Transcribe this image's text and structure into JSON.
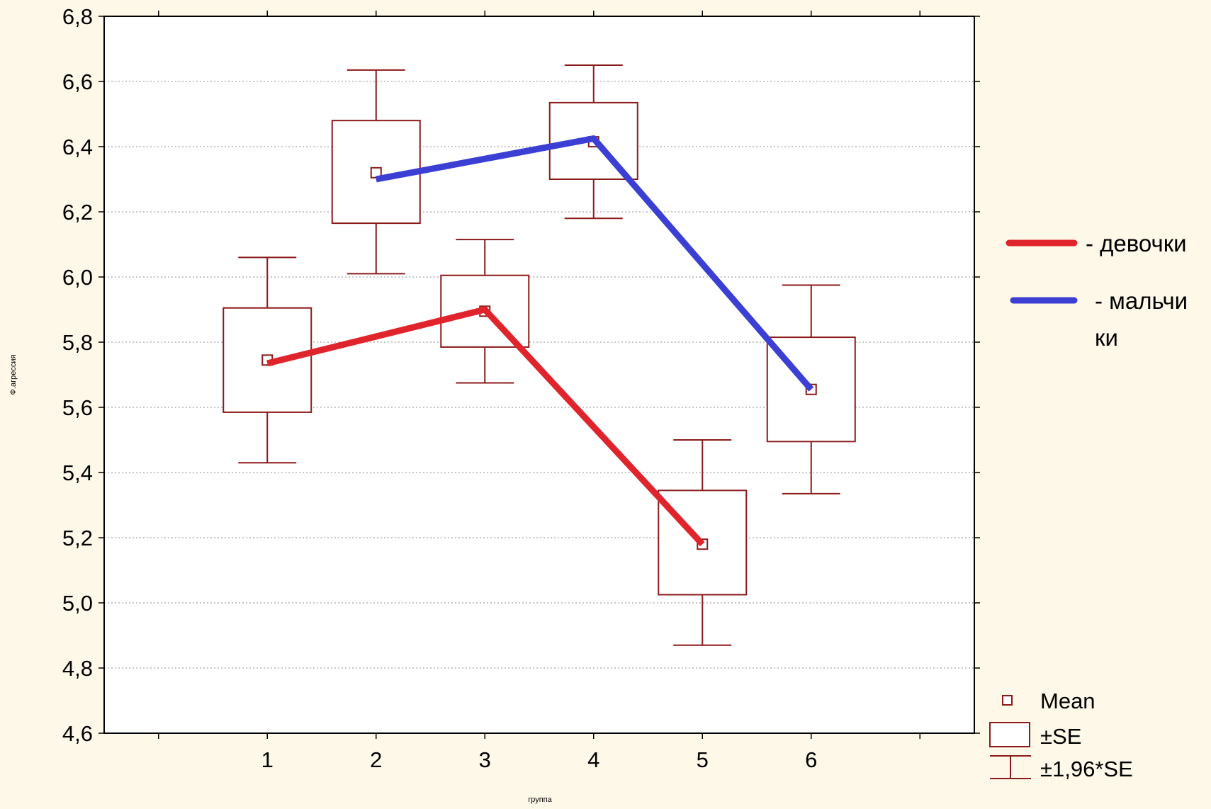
{
  "chart_data": {
    "type": "box",
    "xlabel": "группа",
    "ylabel": "Ф.агрессия",
    "categories": [
      "1",
      "2",
      "3",
      "4",
      "5",
      "6"
    ],
    "x_range": [
      -0.5,
      7.5
    ],
    "ylim": [
      4.6,
      6.8
    ],
    "y_ticks": [
      "4,6",
      "4,8",
      "5,0",
      "5,2",
      "5,4",
      "5,6",
      "5,8",
      "6,0",
      "6,2",
      "6,4",
      "6,6",
      "6,8"
    ],
    "grid": "horizontal dotted",
    "groups": [
      {
        "x": 1,
        "mean": 5.745,
        "se_low": 5.585,
        "se_high": 5.905,
        "ci_low": 5.43,
        "ci_high": 6.06
      },
      {
        "x": 2,
        "mean": 6.32,
        "se_low": 6.165,
        "se_high": 6.48,
        "ci_low": 6.01,
        "ci_high": 6.635
      },
      {
        "x": 3,
        "mean": 5.895,
        "se_low": 5.785,
        "se_high": 6.005,
        "ci_low": 5.675,
        "ci_high": 6.115
      },
      {
        "x": 4,
        "mean": 6.415,
        "se_low": 6.3,
        "se_high": 6.535,
        "ci_low": 6.18,
        "ci_high": 6.65
      },
      {
        "x": 5,
        "mean": 5.18,
        "se_low": 5.025,
        "se_high": 5.345,
        "ci_low": 4.87,
        "ci_high": 5.5
      },
      {
        "x": 6,
        "mean": 5.655,
        "se_low": 5.495,
        "se_high": 5.815,
        "ci_low": 5.335,
        "ci_high": 5.975
      }
    ],
    "series": [
      {
        "name": "- девочки",
        "color": "#e0242c",
        "points": [
          [
            1,
            5.735
          ],
          [
            3,
            5.9
          ],
          [
            5,
            5.18
          ]
        ]
      },
      {
        "name": "- мальчи ки",
        "name_lines": [
          "- мальчи",
          "ки"
        ],
        "color": "#3b3fd4",
        "points": [
          [
            2,
            6.3
          ],
          [
            4,
            6.425
          ],
          [
            6,
            5.655
          ]
        ]
      }
    ],
    "box_legend": [
      "Mean",
      "±SE",
      "±1,96*SE"
    ],
    "colors": {
      "box": "#8b1a1a",
      "axis": "#000000",
      "grid": "#b4b4b4",
      "background": "#fdf8e8",
      "plot_background": "#ffffff"
    }
  }
}
